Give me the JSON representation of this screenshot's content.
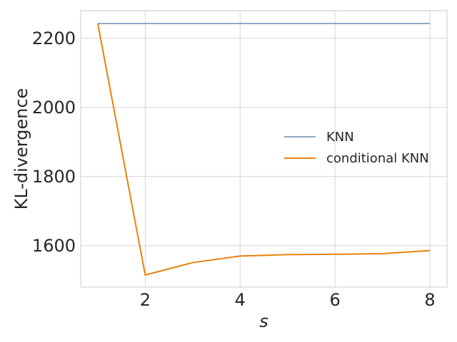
{
  "chart_data": {
    "type": "line",
    "title": "",
    "xlabel": "s",
    "ylabel": "KL-divergence",
    "xlim": [
      0.64,
      8.36
    ],
    "ylim": [
      1480,
      2280
    ],
    "xticks": [
      2,
      4,
      6,
      8
    ],
    "xtick_labels": [
      "2",
      "4",
      "6",
      "8"
    ],
    "yticks": [
      1600,
      1800,
      2000,
      2200
    ],
    "ytick_labels": [
      "1600",
      "1800",
      "2000",
      "2200"
    ],
    "grid": true,
    "legend_position": "center-right",
    "x": [
      1,
      2,
      3,
      4,
      5,
      6,
      7,
      8
    ],
    "series": [
      {
        "name": "KNN",
        "color": "#8fa9c6",
        "values": [
          2243,
          2243,
          2243,
          2243,
          2243,
          2243,
          2243,
          2243
        ]
      },
      {
        "name": "conditional KNN",
        "color": "#e8820c",
        "values": [
          2243,
          1515,
          1551,
          1570,
          1574,
          1575,
          1577,
          1586
        ]
      }
    ]
  }
}
